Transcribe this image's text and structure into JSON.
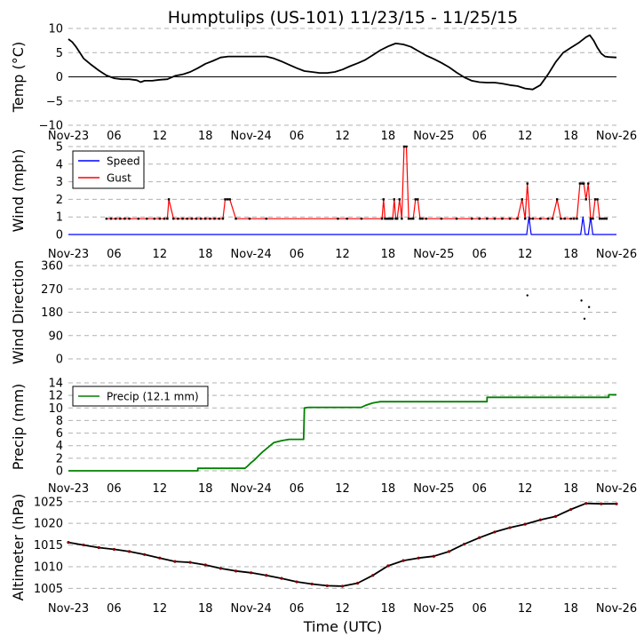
{
  "title": "Humptulips (US-101) 11/23/15 - 11/25/15",
  "xlabel": "Time (UTC)",
  "x_ticks": [
    "Nov-23",
    "06",
    "12",
    "18",
    "Nov-24",
    "06",
    "12",
    "18",
    "Nov-25",
    "06",
    "12",
    "18",
    "Nov-26"
  ],
  "x_range_hours": [
    0,
    72
  ],
  "colors": {
    "temp": "#000000",
    "speed": "#0000ff",
    "gust": "#ff0000",
    "direction": "#000000",
    "precip": "#008000",
    "altimeter_line": "#000000",
    "altimeter_marker": "#800000",
    "grid": "#b0b0b0"
  },
  "chart_data": [
    {
      "id": "temp",
      "type": "line",
      "ylabel": "Temp (°C)",
      "ylim": [
        -10,
        10
      ],
      "y_ticks": [
        "−10",
        "−5",
        "0",
        "5",
        "10"
      ],
      "y_tick_values": [
        -10,
        -5,
        0,
        5,
        10
      ],
      "zero_line": true,
      "series": [
        {
          "name": "Temp",
          "x": [
            0,
            0.5,
            1,
            1.5,
            2,
            3,
            4,
            5,
            6,
            7,
            8,
            9,
            9.5,
            10,
            11,
            12,
            13,
            14,
            15,
            16,
            17,
            18,
            19,
            20,
            21,
            22,
            23,
            24,
            25,
            26,
            27,
            28,
            29,
            30,
            31,
            32,
            33,
            34,
            35,
            36,
            37,
            38,
            39,
            40,
            41,
            42,
            42.5,
            43,
            44,
            45,
            46,
            47,
            48,
            49,
            50,
            51,
            52,
            53,
            54,
            55,
            56,
            57,
            58,
            59,
            60,
            61,
            62,
            63,
            64,
            65,
            66,
            67,
            68,
            68.5,
            69,
            69.5,
            70,
            70.5,
            71,
            72
          ],
          "values": [
            7.8,
            7.2,
            6.2,
            5.0,
            3.8,
            2.5,
            1.3,
            0.3,
            -0.3,
            -0.5,
            -0.5,
            -0.7,
            -1.1,
            -0.8,
            -0.8,
            -0.6,
            -0.5,
            0.2,
            0.5,
            1.0,
            1.8,
            2.7,
            3.3,
            4.0,
            4.2,
            4.2,
            4.2,
            4.2,
            4.2,
            4.2,
            3.8,
            3.2,
            2.5,
            1.8,
            1.2,
            1.0,
            0.8,
            0.8,
            1.0,
            1.5,
            2.2,
            2.8,
            3.5,
            4.5,
            5.5,
            6.3,
            6.6,
            6.9,
            6.7,
            6.2,
            5.3,
            4.4,
            3.7,
            2.9,
            2.0,
            0.9,
            -0.1,
            -0.8,
            -1.1,
            -1.2,
            -1.2,
            -1.4,
            -1.7,
            -1.9,
            -2.4,
            -2.6,
            -1.7,
            0.5,
            3.0,
            5.0,
            6.0,
            7.0,
            8.2,
            8.6,
            7.5,
            6.0,
            4.8,
            4.2,
            4.1,
            4.0
          ]
        }
      ]
    },
    {
      "id": "wind",
      "type": "line",
      "ylabel": "Wind (mph)",
      "ylim": [
        0,
        5
      ],
      "y_ticks": [
        "0",
        "1",
        "2",
        "3",
        "4",
        "5"
      ],
      "y_tick_values": [
        0,
        1,
        2,
        3,
        4,
        5
      ],
      "legend": "top-left",
      "series": [
        {
          "name": "Speed",
          "x": [
            0,
            60.2,
            60.5,
            60.8,
            67.3,
            67.6,
            67.9,
            68.3,
            68.6,
            68.9,
            72
          ],
          "values": [
            0,
            0,
            1,
            0,
            0,
            1,
            0,
            0,
            1,
            0,
            0
          ]
        },
        {
          "name": "Gust",
          "x": [
            5.0,
            5.6,
            6.2,
            6.8,
            7.4,
            8.0,
            9.2,
            10.3,
            11.3,
            12.0,
            12.6,
            13.0,
            13.2,
            13.8,
            14.4,
            15.0,
            15.6,
            16.2,
            16.8,
            17.4,
            18.0,
            18.6,
            19.2,
            19.8,
            20.3,
            20.6,
            20.9,
            21.2,
            22.0,
            23.8,
            26.0,
            35.4,
            36.6,
            38.5,
            41.2,
            41.4,
            41.6,
            41.8,
            42.0,
            42.2,
            42.4,
            42.6,
            42.8,
            43.0,
            43.2,
            43.5,
            43.8,
            44.1,
            44.4,
            44.7,
            45.0,
            45.3,
            45.6,
            45.9,
            46.2,
            46.5,
            47.0,
            49.0,
            51.0,
            53.0,
            54.0,
            55.0,
            56.0,
            57.0,
            58.0,
            59.0,
            59.6,
            60.0,
            60.3,
            60.6,
            61.0,
            62.0,
            63.0,
            63.6,
            64.2,
            64.7,
            65.2,
            66.0,
            66.4,
            66.8,
            67.2,
            67.5,
            67.7,
            68.0,
            68.3,
            68.6,
            68.9,
            69.2,
            69.5,
            69.8,
            70.1,
            70.4,
            70.7
          ],
          "values": [
            0.9,
            0.9,
            0.9,
            0.9,
            0.9,
            0.9,
            0.9,
            0.9,
            0.9,
            0.9,
            0.9,
            0.9,
            2.0,
            0.9,
            0.9,
            0.9,
            0.9,
            0.9,
            0.9,
            0.9,
            0.9,
            0.9,
            0.9,
            0.9,
            0.9,
            2.0,
            2.0,
            2.0,
            0.9,
            0.9,
            0.9,
            0.9,
            0.9,
            0.9,
            0.9,
            2.0,
            0.9,
            0.9,
            0.9,
            0.9,
            0.9,
            0.9,
            2.0,
            0.9,
            0.9,
            2.0,
            0.9,
            5.0,
            5.0,
            0.9,
            0.9,
            0.9,
            2.0,
            2.0,
            0.9,
            0.9,
            0.9,
            0.9,
            0.9,
            0.9,
            0.9,
            0.9,
            0.9,
            0.9,
            0.9,
            0.9,
            2.0,
            0.9,
            2.9,
            0.9,
            0.9,
            0.9,
            0.9,
            0.9,
            2.0,
            0.9,
            0.9,
            0.9,
            0.9,
            0.9,
            2.9,
            2.9,
            2.9,
            2.0,
            2.9,
            0.9,
            0.9,
            2.0,
            2.0,
            0.9,
            0.9,
            0.9,
            0.9
          ]
        }
      ]
    },
    {
      "id": "direction",
      "type": "scatter",
      "ylabel": "Wind Direction",
      "ylim": [
        0,
        360
      ],
      "y_ticks": [
        "0",
        "90",
        "180",
        "270",
        "360"
      ],
      "y_tick_values": [
        0,
        90,
        180,
        270,
        360
      ],
      "series": [
        {
          "name": "Direction",
          "x": [
            60.3,
            67.4,
            67.8,
            68.4
          ],
          "values": [
            245,
            225,
            155,
            200
          ]
        }
      ]
    },
    {
      "id": "precip",
      "type": "line",
      "ylabel": "Precip (mm)",
      "ylim": [
        0,
        14
      ],
      "y_ticks": [
        "0",
        "2",
        "4",
        "6",
        "8",
        "10",
        "12",
        "14"
      ],
      "y_tick_values": [
        0,
        2,
        4,
        6,
        8,
        10,
        12,
        14
      ],
      "legend": "top-left",
      "series": [
        {
          "name": "Precip (12.1 mm)",
          "x": [
            0,
            17.0,
            17.0,
            23.2,
            23.5,
            24.0,
            24.5,
            25.0,
            25.5,
            26.0,
            26.5,
            27.0,
            28.0,
            29.0,
            30.0,
            30.9,
            31.0,
            31.5,
            38.5,
            39.0,
            39.5,
            40.0,
            40.5,
            41.0,
            41.5,
            48.0,
            55.0,
            55.0,
            71.0,
            71.0,
            72.0
          ],
          "values": [
            0,
            0,
            0.4,
            0.4,
            0.7,
            1.3,
            1.8,
            2.4,
            3.0,
            3.5,
            4.0,
            4.5,
            4.8,
            5.0,
            5.0,
            5.0,
            10.0,
            10.1,
            10.1,
            10.4,
            10.6,
            10.8,
            10.9,
            11.0,
            11.0,
            11.0,
            11.0,
            11.7,
            11.7,
            12.1,
            12.1
          ]
        }
      ]
    },
    {
      "id": "altimeter",
      "type": "line",
      "ylabel": "Altimeter (hPa)",
      "ylim": [
        1002,
        1027
      ],
      "y_ticks": [
        "1005",
        "1010",
        "1015",
        "1020",
        "1025"
      ],
      "y_tick_values": [
        1005,
        1010,
        1015,
        1020,
        1025
      ],
      "series": [
        {
          "name": "Altimeter",
          "x": [
            0,
            2,
            4,
            6,
            8,
            10,
            12,
            14,
            16,
            18,
            20,
            22,
            24,
            26,
            28,
            30,
            32,
            34,
            36,
            38,
            40,
            42,
            44,
            46,
            48,
            50,
            52,
            54,
            56,
            58,
            60,
            62,
            64,
            66,
            68,
            70,
            72
          ],
          "values": [
            1015.6,
            1015.0,
            1014.4,
            1014.0,
            1013.5,
            1012.8,
            1012.0,
            1011.2,
            1011.0,
            1010.4,
            1009.6,
            1009.0,
            1008.6,
            1008.0,
            1007.3,
            1006.5,
            1006.0,
            1005.6,
            1005.5,
            1006.2,
            1008.0,
            1010.2,
            1011.4,
            1012.0,
            1012.4,
            1013.5,
            1015.2,
            1016.7,
            1018.0,
            1019.0,
            1019.8,
            1020.8,
            1021.6,
            1023.2,
            1024.6,
            1024.5,
            1024.5
          ]
        }
      ]
    }
  ]
}
